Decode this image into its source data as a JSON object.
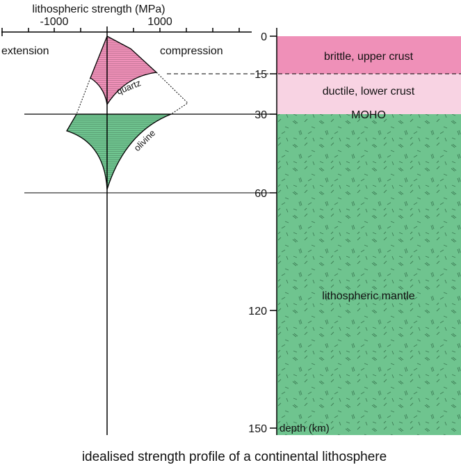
{
  "axis": {
    "title": "lithospheric strength (MPa)",
    "tick_labels": [
      "-1000",
      "1000"
    ],
    "left_label": "extension",
    "right_label": "compression"
  },
  "curves": {
    "quartz": "quartz",
    "olivine": "olivine"
  },
  "depth_axis": {
    "labels": [
      "0",
      "15",
      "30",
      "60",
      "120",
      "150"
    ],
    "title": "depth (km)"
  },
  "layers": [
    "brittle, upper crust",
    "ductile, lower crust",
    "MOHO",
    "lithospheric mantle"
  ],
  "caption": "idealised strength profile of a continental lithosphere"
}
